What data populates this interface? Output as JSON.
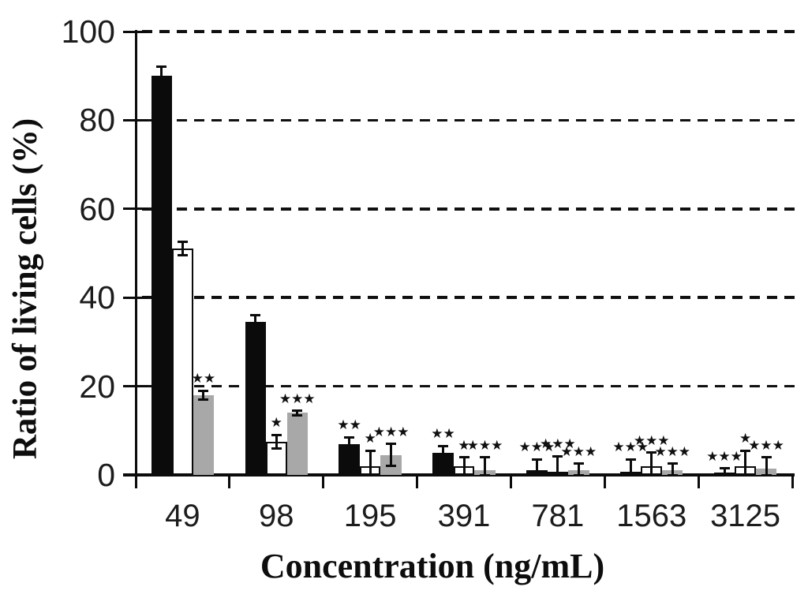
{
  "chart_data": {
    "type": "bar",
    "title": "",
    "xlabel": "Concentration (ng/mL)",
    "ylabel": "Ratio of living cells (%)",
    "categories": [
      "49",
      "98",
      "195",
      "391",
      "781",
      "1563",
      "3125"
    ],
    "series": [
      {
        "name": "black-bars",
        "color": "#0b0b0b",
        "values": [
          90,
          34.5,
          7,
          5,
          1,
          0.8,
          0.5
        ],
        "errors": [
          2,
          1.5,
          1.5,
          1.5,
          2.5,
          2.7,
          1
        ],
        "sig": [
          "",
          "",
          "**",
          "**",
          "***",
          "***",
          "***"
        ]
      },
      {
        "name": "white-bars",
        "color": "#ffffff",
        "values": [
          51,
          7.5,
          2,
          2,
          0.7,
          2,
          2
        ],
        "errors": [
          1.5,
          1.5,
          3.5,
          2,
          3.5,
          3,
          3.5
        ],
        "sig": [
          "",
          "*",
          "*",
          "*",
          "***",
          "***",
          "*"
        ]
      },
      {
        "name": "gray-bars",
        "color": "#a8a8a8",
        "values": [
          18,
          14,
          4.5,
          1,
          1,
          1,
          1.5
        ],
        "errors": [
          1,
          0.5,
          2.5,
          3,
          1.5,
          1.5,
          2.5
        ],
        "sig": [
          "**",
          "***",
          "***",
          "***",
          "***",
          "***",
          "***"
        ]
      }
    ],
    "yticks": [
      0,
      20,
      40,
      60,
      80,
      100
    ],
    "ylim": [
      0,
      100
    ],
    "grid": "horizontal dashed lines at 20, 40, 60, 80, 100",
    "legend": "none",
    "error_bars": true,
    "sig_symbol": "filled five-pointed star asterisks"
  }
}
